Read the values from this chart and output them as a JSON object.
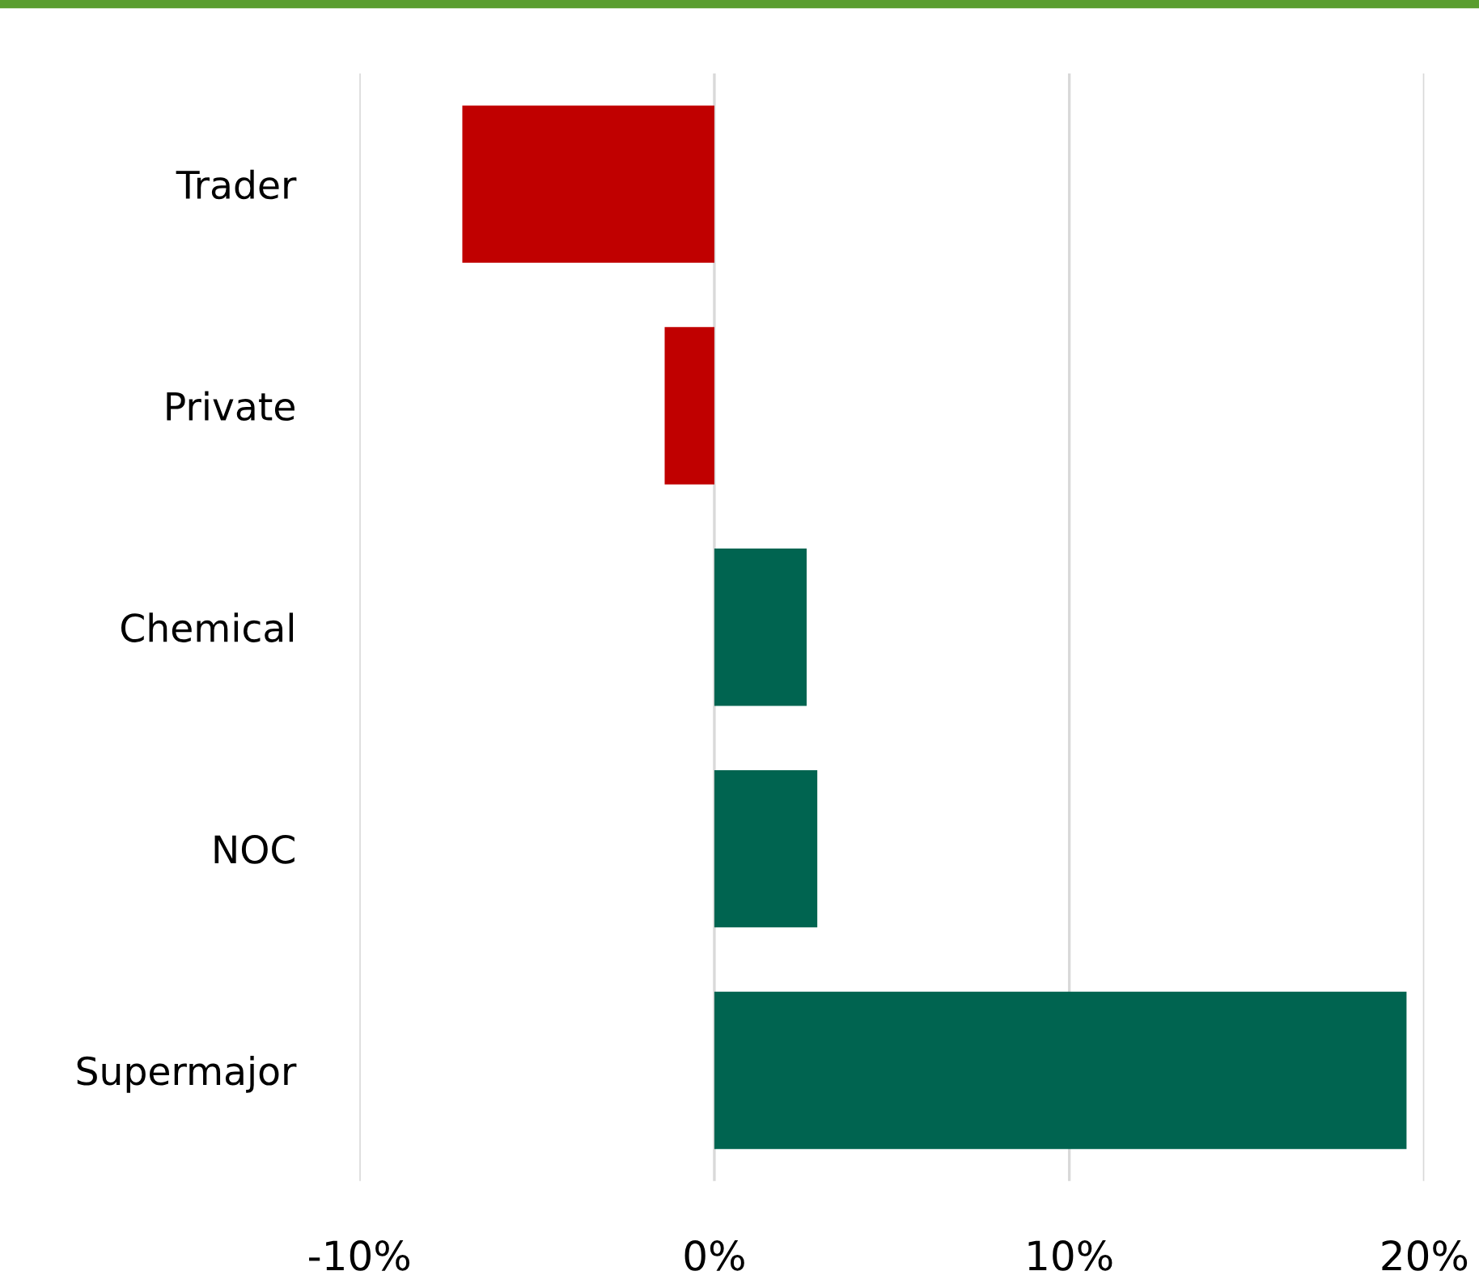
{
  "chart_data": {
    "type": "bar",
    "orientation": "horizontal",
    "categories": [
      "Trader",
      "Private",
      "Chemical",
      "NOC",
      "Supermajor"
    ],
    "values": [
      -7.1,
      -1.4,
      2.6,
      2.9,
      19.5
    ],
    "colors": [
      "#c00000",
      "#c00000",
      "#006450",
      "#006450",
      "#006450"
    ],
    "xlim": [
      -10,
      20
    ],
    "xticks": [
      {
        "value": -10,
        "label": "-10%"
      },
      {
        "value": 0,
        "label": "0%"
      },
      {
        "value": 10,
        "label": "10%"
      },
      {
        "value": 20,
        "label": "20%"
      }
    ],
    "grid": "x",
    "legend": false
  }
}
